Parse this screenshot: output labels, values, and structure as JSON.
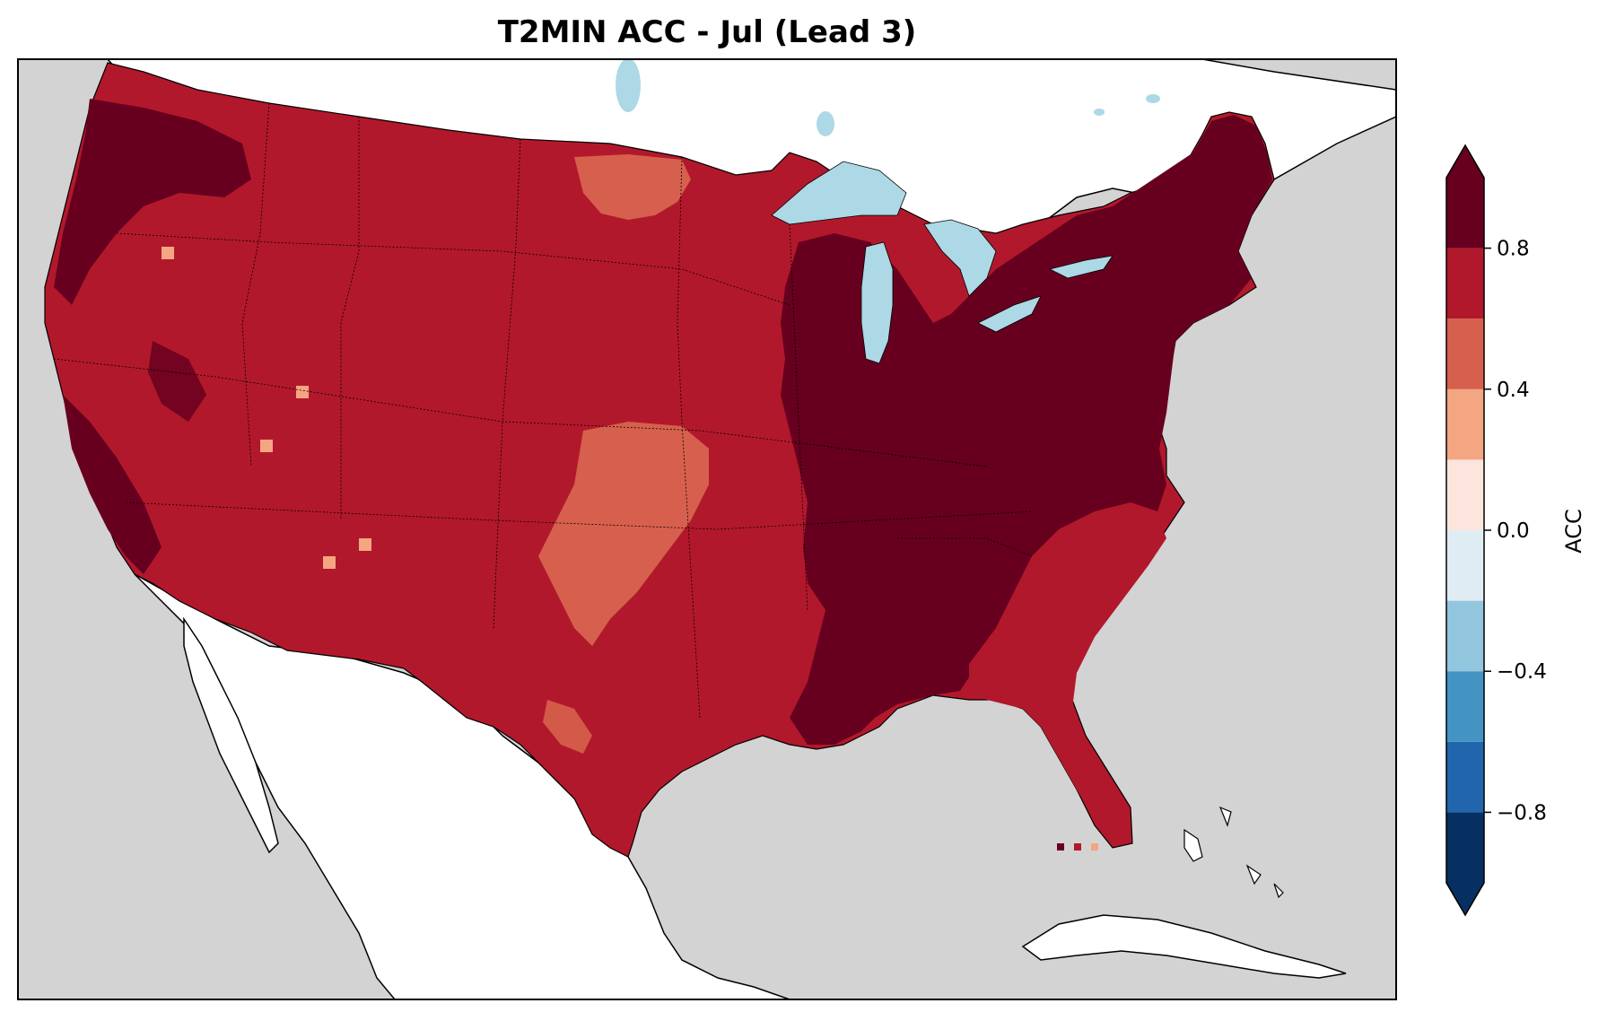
{
  "title": "T2MIN ACC - Jul (Lead 3)",
  "colors": {
    "ocean": "#d3d3d3",
    "land_outside": "#ffffff",
    "lakes": "#add8e6",
    "borders": "#000000"
  },
  "colorbar": {
    "label": "ACC",
    "range": [
      -1.0,
      1.0
    ],
    "extend": "both",
    "bins": [
      {
        "from": -1.0,
        "to": -0.8,
        "color": "#053061"
      },
      {
        "from": -0.8,
        "to": -0.6,
        "color": "#2166ac"
      },
      {
        "from": -0.6,
        "to": -0.4,
        "color": "#4393c3"
      },
      {
        "from": -0.4,
        "to": -0.2,
        "color": "#92c5de"
      },
      {
        "from": -0.2,
        "to": 0.0,
        "color": "#e0ecf4"
      },
      {
        "from": 0.0,
        "to": 0.2,
        "color": "#fbe5dc"
      },
      {
        "from": 0.2,
        "to": 0.4,
        "color": "#f4a582"
      },
      {
        "from": 0.4,
        "to": 0.6,
        "color": "#d6604d"
      },
      {
        "from": 0.6,
        "to": 0.8,
        "color": "#b2182b"
      },
      {
        "from": 0.8,
        "to": 1.0,
        "color": "#67001f"
      }
    ],
    "ticks": [
      {
        "value": 0.8,
        "label": "0.8"
      },
      {
        "value": 0.4,
        "label": "0.4"
      },
      {
        "value": 0.0,
        "label": "0.0"
      },
      {
        "value": -0.4,
        "label": "−0.4"
      },
      {
        "value": -0.8,
        "label": "−0.8"
      }
    ]
  },
  "regions": [
    {
      "name": "pacific-northwest",
      "acc_bin": "0.8-1.0"
    },
    {
      "name": "western-us",
      "acc_bin": "0.6-0.8"
    },
    {
      "name": "northern-plains",
      "acc_bin": "0.4-0.6"
    },
    {
      "name": "southern-plains",
      "acc_bin": "0.4-0.6"
    },
    {
      "name": "midwest-east",
      "acc_bin": "0.8-1.0"
    },
    {
      "name": "southeast",
      "acc_bin": "0.6-0.8"
    },
    {
      "name": "florida-tip",
      "acc_bin": "0.2-0.4"
    }
  ]
}
